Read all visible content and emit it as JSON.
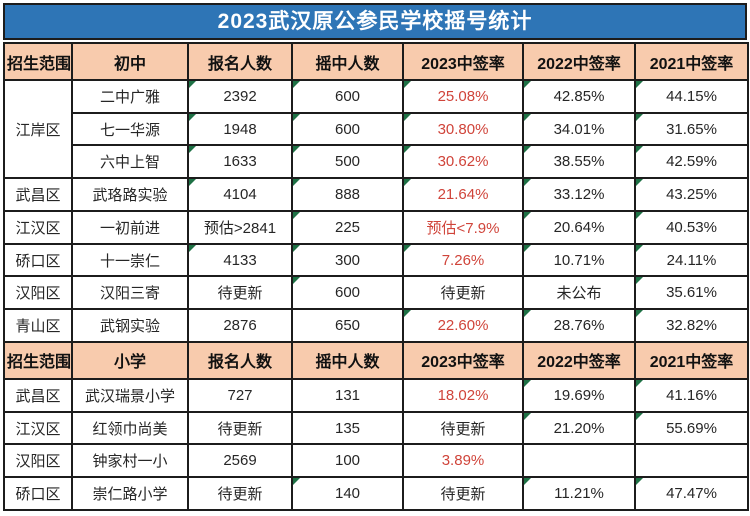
{
  "title": "2023武汉原公参民学校摇号统计",
  "colors": {
    "title-bg": "#2e75b6",
    "title-text": "#ffffff",
    "header-bg": "#f8cbad",
    "border": "#1c1c1c",
    "text": "#262626",
    "red": "#d0443a",
    "flag-green": "#1e7145"
  },
  "table": {
    "sections": [
      {
        "header": [
          "招生范围",
          "初中",
          "报名人数",
          "摇中人数",
          "2023中签率",
          "2022中签率",
          "2021中签率"
        ],
        "rows": [
          {
            "region": "江岸区",
            "span": 3,
            "school": "二中广雅",
            "values": [
              {
                "t": "2392",
                "flag": true
              },
              {
                "t": "600",
                "flag": true
              },
              {
                "t": "25.08%",
                "red": true,
                "flag": true
              },
              {
                "t": "42.85%",
                "flag": true
              },
              {
                "t": "44.15%",
                "flag": true
              }
            ]
          },
          {
            "school": "七一华源",
            "values": [
              {
                "t": "1948",
                "flag": true
              },
              {
                "t": "600",
                "flag": true
              },
              {
                "t": "30.80%",
                "red": true,
                "flag": true
              },
              {
                "t": "34.01%",
                "flag": true
              },
              {
                "t": "31.65%",
                "flag": true
              }
            ]
          },
          {
            "school": "六中上智",
            "values": [
              {
                "t": "1633",
                "flag": true
              },
              {
                "t": "500",
                "flag": true
              },
              {
                "t": "30.62%",
                "red": true,
                "flag": true
              },
              {
                "t": "38.55%",
                "flag": true
              },
              {
                "t": "42.59%",
                "flag": true
              }
            ]
          },
          {
            "region": "武昌区",
            "school": "武珞路实验",
            "values": [
              {
                "t": "4104",
                "flag": true
              },
              {
                "t": "888",
                "flag": true
              },
              {
                "t": "21.64%",
                "red": true,
                "flag": true
              },
              {
                "t": "33.12%",
                "flag": true
              },
              {
                "t": "43.25%",
                "flag": true
              }
            ]
          },
          {
            "region": "江汉区",
            "school": "一初前进",
            "values": [
              {
                "t": "预估>2841"
              },
              {
                "t": "225",
                "flag": true
              },
              {
                "t": "预估<7.9%",
                "red": true
              },
              {
                "t": "20.64%",
                "flag": true
              },
              {
                "t": "40.53%",
                "flag": true
              }
            ]
          },
          {
            "region": "硚口区",
            "school": "十一崇仁",
            "values": [
              {
                "t": "4133",
                "flag": true
              },
              {
                "t": "300",
                "flag": true
              },
              {
                "t": "7.26%",
                "red": true,
                "flag": true
              },
              {
                "t": "10.71%",
                "flag": true
              },
              {
                "t": "24.11%",
                "flag": true
              }
            ]
          },
          {
            "region": "汉阳区",
            "school": "汉阳三寄",
            "values": [
              {
                "t": "待更新"
              },
              {
                "t": "600",
                "flag": true
              },
              {
                "t": "待更新"
              },
              {
                "t": "未公布"
              },
              {
                "t": "35.61%",
                "flag": true
              }
            ]
          },
          {
            "region": "青山区",
            "school": "武钢实验",
            "values": [
              {
                "t": "2876"
              },
              {
                "t": "650"
              },
              {
                "t": "22.60%",
                "red": true,
                "flag": true
              },
              {
                "t": "28.76%",
                "flag": true
              },
              {
                "t": "32.82%",
                "flag": true
              }
            ]
          }
        ]
      },
      {
        "header": [
          "招生范围",
          "小学",
          "报名人数",
          "摇中人数",
          "2023中签率",
          "2022中签率",
          "2021中签率"
        ],
        "rows": [
          {
            "region": "武昌区",
            "school": "武汉瑞景小学",
            "values": [
              {
                "t": "727"
              },
              {
                "t": "131"
              },
              {
                "t": "18.02%",
                "red": true
              },
              {
                "t": "19.69%",
                "flag": true
              },
              {
                "t": "41.16%",
                "flag": true
              }
            ]
          },
          {
            "region": "江汉区",
            "school": "红领巾尚美",
            "values": [
              {
                "t": "待更新"
              },
              {
                "t": "135"
              },
              {
                "t": "待更新"
              },
              {
                "t": "21.20%",
                "flag": true
              },
              {
                "t": "55.69%",
                "flag": true
              }
            ]
          },
          {
            "region": "汉阳区",
            "school": "钟家村一小",
            "values": [
              {
                "t": "2569"
              },
              {
                "t": "100"
              },
              {
                "t": "3.89%",
                "red": true
              },
              {
                "t": ""
              },
              {
                "t": ""
              }
            ]
          },
          {
            "region": "硚口区",
            "school": "崇仁路小学",
            "values": [
              {
                "t": "待更新"
              },
              {
                "t": "140",
                "flag": true
              },
              {
                "t": "待更新"
              },
              {
                "t": "11.21%",
                "flag": true
              },
              {
                "t": "47.47%",
                "flag": true
              }
            ]
          }
        ]
      }
    ]
  }
}
